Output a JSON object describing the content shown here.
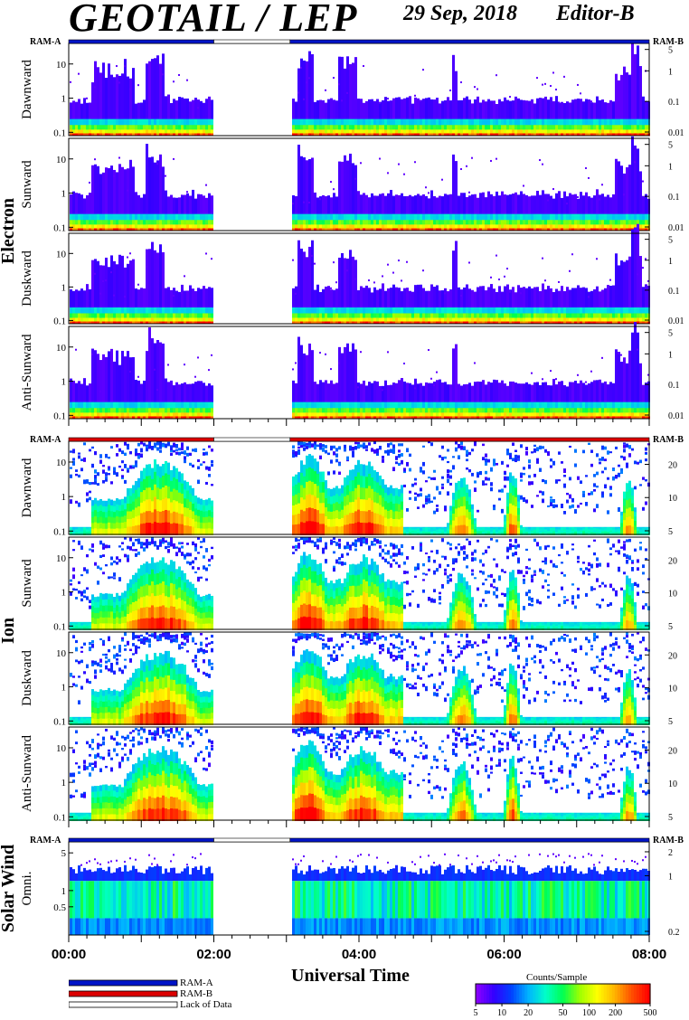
{
  "header": {
    "title": "GEOTAIL / LEP",
    "date": "29 Sep, 2018",
    "editor": "Editor-B"
  },
  "colors": {
    "ram_a": "#0014c8",
    "ram_b": "#dc0000",
    "lack_of_data": "#ffffff"
  },
  "chart_data": {
    "type": "heatmap",
    "xlabel": "Universal Time",
    "x_ticks": [
      "00:00",
      "02:00",
      "04:00",
      "06:00",
      "08:00"
    ],
    "x_range_hours": [
      0,
      8
    ],
    "data_gap_hours": [
      2.0,
      3.05
    ],
    "ram_labels": {
      "left": "RAM-A",
      "right": "RAM-B"
    },
    "groups": [
      {
        "label": "Electron",
        "ram_bar": {
          "before_gap": "RAM-A",
          "after_gap": "RAM-A"
        },
        "panels": [
          {
            "label": "Dawnward",
            "y_ticks": [
              "0.1",
              "1",
              "10"
            ],
            "right_ticks": [
              "0.01",
              "0.1",
              "1",
              "5"
            ],
            "ylim": [
              0.08,
              40
            ],
            "scale": "log"
          },
          {
            "label": "Sunward",
            "y_ticks": [
              "0.1",
              "1",
              "10"
            ],
            "right_ticks": [
              "0.01",
              "0.1",
              "1",
              "5"
            ],
            "ylim": [
              0.08,
              40
            ],
            "scale": "log"
          },
          {
            "label": "Duskward",
            "y_ticks": [
              "0.1",
              "1",
              "10"
            ],
            "right_ticks": [
              "0.01",
              "0.1",
              "1",
              "5"
            ],
            "ylim": [
              0.08,
              40
            ],
            "scale": "log"
          },
          {
            "label": "Anti-Sunward",
            "y_ticks": [
              "0.1",
              "1",
              "10"
            ],
            "right_ticks": [
              "0.01",
              "0.1",
              "1",
              "5"
            ],
            "ylim": [
              0.08,
              40
            ],
            "scale": "log"
          }
        ]
      },
      {
        "label": "Ion",
        "ram_bar": {
          "before_gap": "RAM-B",
          "after_gap": "RAM-B"
        },
        "panels": [
          {
            "label": "Dawnward",
            "y_ticks": [
              "0.1",
              "1",
              "10"
            ],
            "right_ticks": [
              "5",
              "10",
              "20"
            ],
            "ylim": [
              0.08,
              40
            ],
            "scale": "log"
          },
          {
            "label": "Sunward",
            "y_ticks": [
              "0.1",
              "1",
              "10"
            ],
            "right_ticks": [
              "5",
              "10",
              "20"
            ],
            "ylim": [
              0.08,
              40
            ],
            "scale": "log"
          },
          {
            "label": "Duskward",
            "y_ticks": [
              "0.1",
              "1",
              "10"
            ],
            "right_ticks": [
              "5",
              "10",
              "20"
            ],
            "ylim": [
              0.08,
              40
            ],
            "scale": "log"
          },
          {
            "label": "Anti-Sunward",
            "y_ticks": [
              "0.1",
              "1",
              "10"
            ],
            "right_ticks": [
              "5",
              "10",
              "20"
            ],
            "ylim": [
              0.08,
              40
            ],
            "scale": "log"
          }
        ]
      },
      {
        "label": "Solar Wind",
        "ram_bar": {
          "before_gap": "RAM-A",
          "after_gap": "RAM-A"
        },
        "panels": [
          {
            "label": "Omni.",
            "y_ticks": [
              "0.5",
              "1",
              "5"
            ],
            "right_ticks": [
              "0.2",
              "1",
              "2"
            ],
            "ylim": [
              0.15,
              8
            ],
            "scale": "log"
          }
        ]
      }
    ],
    "legend": [
      {
        "label": "RAM-A",
        "color": "#0014c8"
      },
      {
        "label": "RAM-B",
        "color": "#dc0000"
      },
      {
        "label": "Lack of Data",
        "color": "#ffffff"
      }
    ],
    "colorbar": {
      "title": "Counts/Sample",
      "ticks": [
        "5",
        "10",
        "20",
        "50",
        "100",
        "200",
        "500"
      ],
      "range": [
        5,
        500
      ],
      "scale": "log",
      "colors": [
        "#8a00ff",
        "#3200ff",
        "#0040ff",
        "#00b4ff",
        "#00ffc8",
        "#00ff50",
        "#a0ff00",
        "#ffff00",
        "#ffb400",
        "#ff5000",
        "#ff0000"
      ]
    }
  }
}
